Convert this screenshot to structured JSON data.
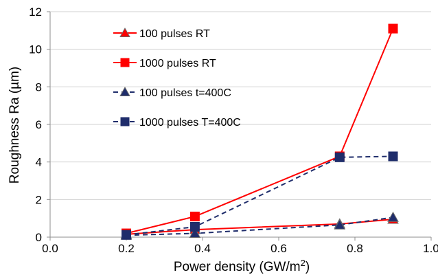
{
  "chart_data": {
    "type": "line",
    "title": "",
    "xlabel": "Power density (GW/m",
    "xlabel_sup": "2",
    "xlabel_suffix": ")",
    "ylabel": "Roughness Ra (µm)",
    "xlim": [
      0.0,
      1.0
    ],
    "ylim": [
      0,
      12
    ],
    "xticks": [
      0.0,
      0.2,
      0.4,
      0.6,
      0.8,
      1.0
    ],
    "xtick_labels": [
      "0.0",
      "0.2",
      "0.4",
      "0.6",
      "0.8",
      "1.0"
    ],
    "yticks": [
      0,
      2,
      4,
      6,
      8,
      10,
      12
    ],
    "ytick_labels": [
      "0",
      "2",
      "4",
      "6",
      "8",
      "10",
      "12"
    ],
    "grid": "horizontal",
    "legend_position": "top-left",
    "series": [
      {
        "name": "100 pulses RT",
        "color": "#ff0000",
        "marker": "triangle",
        "line_style": "solid",
        "x": [
          0.2,
          0.38,
          0.76,
          0.9
        ],
        "y": [
          0.15,
          0.4,
          0.7,
          0.95
        ]
      },
      {
        "name": "1000 pulses RT",
        "color": "#ff0000",
        "marker": "square",
        "line_style": "solid",
        "x": [
          0.2,
          0.38,
          0.76,
          0.9
        ],
        "y": [
          0.2,
          1.1,
          4.3,
          11.1
        ]
      },
      {
        "name": "100 pulses t=400C",
        "color": "#1f2d6b",
        "marker": "triangle",
        "line_style": "dashed",
        "x": [
          0.2,
          0.38,
          0.76,
          0.9
        ],
        "y": [
          0.1,
          0.2,
          0.65,
          1.05
        ]
      },
      {
        "name": "1000 pulses T=400C",
        "color": "#1f2d6b",
        "marker": "square",
        "line_style": "dashed",
        "x": [
          0.2,
          0.38,
          0.76,
          0.9
        ],
        "y": [
          0.12,
          0.55,
          4.25,
          4.3
        ]
      }
    ]
  }
}
